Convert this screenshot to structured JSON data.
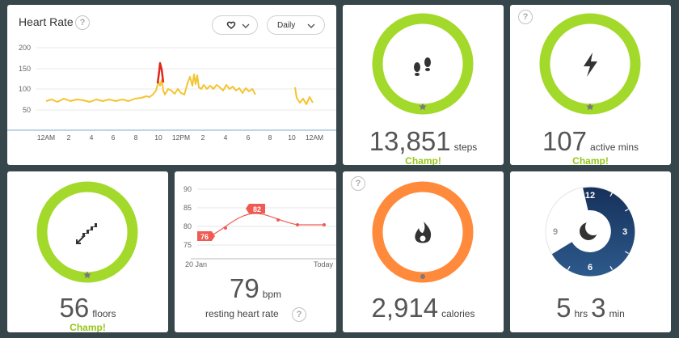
{
  "heart_rate": {
    "title": "Heart Rate",
    "help": "?",
    "range_label": "Daily",
    "y_ticks": [
      "200",
      "150",
      "100",
      "50"
    ],
    "x_ticks": [
      "12AM",
      "2",
      "4",
      "6",
      "8",
      "10",
      "12PM",
      "2",
      "4",
      "6",
      "8",
      "10",
      "12AM"
    ]
  },
  "steps": {
    "value": "13,851",
    "unit": "steps",
    "badge": "Champ!",
    "progress": 1.0,
    "icon": "footsteps-icon"
  },
  "active": {
    "value": "107",
    "unit": "active mins",
    "badge": "Champ!",
    "progress": 1.0,
    "icon": "lightning-icon",
    "help": "?"
  },
  "floors": {
    "value": "56",
    "unit": "floors",
    "badge": "Champ!",
    "progress": 1.0,
    "icon": "stairs-icon"
  },
  "resting_hr": {
    "value": "79",
    "unit": "bpm",
    "caption": "resting heart rate",
    "help": "?",
    "y_ticks": [
      "90",
      "85",
      "80",
      "75"
    ],
    "x_start": "20 Jan",
    "x_end": "Today",
    "badge_low": "76",
    "badge_high": "82"
  },
  "calories": {
    "value": "2,914",
    "unit": "calories",
    "help": "?",
    "icon": "flame-icon"
  },
  "sleep": {
    "hours": "5",
    "hours_unit": "hrs",
    "minutes": "3",
    "minutes_unit": "min",
    "clock_labels": [
      "12",
      "3",
      "6",
      "9"
    ],
    "icon": "moon-icon"
  },
  "colors": {
    "green_ring": "#a3d92a",
    "orange_ring": "#ff8a3c",
    "hr_line": "#f4c430",
    "hr_peak": "#e0261c",
    "rhr_line": "#ef5a52",
    "sleep_navy": "#1f3f6e",
    "background": "#37464a"
  }
}
